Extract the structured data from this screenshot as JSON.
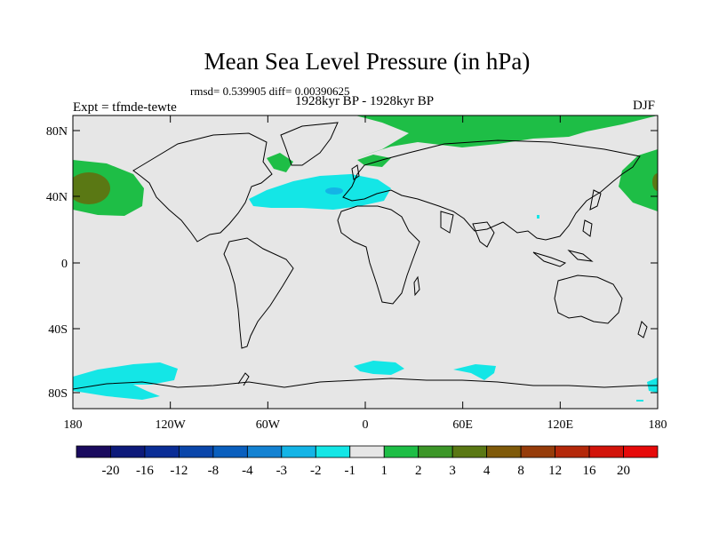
{
  "title": "Mean Sea Level Pressure (in hPa)",
  "stats": "rmsd= 0.539905 diff= 0.00390625",
  "period": "1928kyr BP - 1928kyr BP",
  "expt": "Expt = tfmde-tewte",
  "season": "DJF",
  "map": {
    "y_ticks": [
      "80N",
      "40N",
      "0",
      "40S",
      "80S"
    ],
    "x_ticks": [
      "180",
      "120W",
      "60W",
      "0",
      "60E",
      "120E",
      "180"
    ],
    "background_color": "#e6e6e6",
    "coast_color": "#000000"
  },
  "legend": {
    "labels": [
      "-20",
      "-16",
      "-12",
      "-8",
      "-4",
      "-3",
      "-2",
      "-1",
      "1",
      "2",
      "3",
      "4",
      "8",
      "12",
      "16",
      "20"
    ],
    "colors": [
      "#1a0a5e",
      "#0d1a7a",
      "#0a2d96",
      "#0a46aa",
      "#0a5fbe",
      "#1482d2",
      "#14b4e6",
      "#14e6e6",
      "#e6e6e6",
      "#1ebe46",
      "#3c9628",
      "#5a7814",
      "#7f5a0a",
      "#963c0a",
      "#b4280a",
      "#d2140a",
      "#e60a0a"
    ]
  }
}
